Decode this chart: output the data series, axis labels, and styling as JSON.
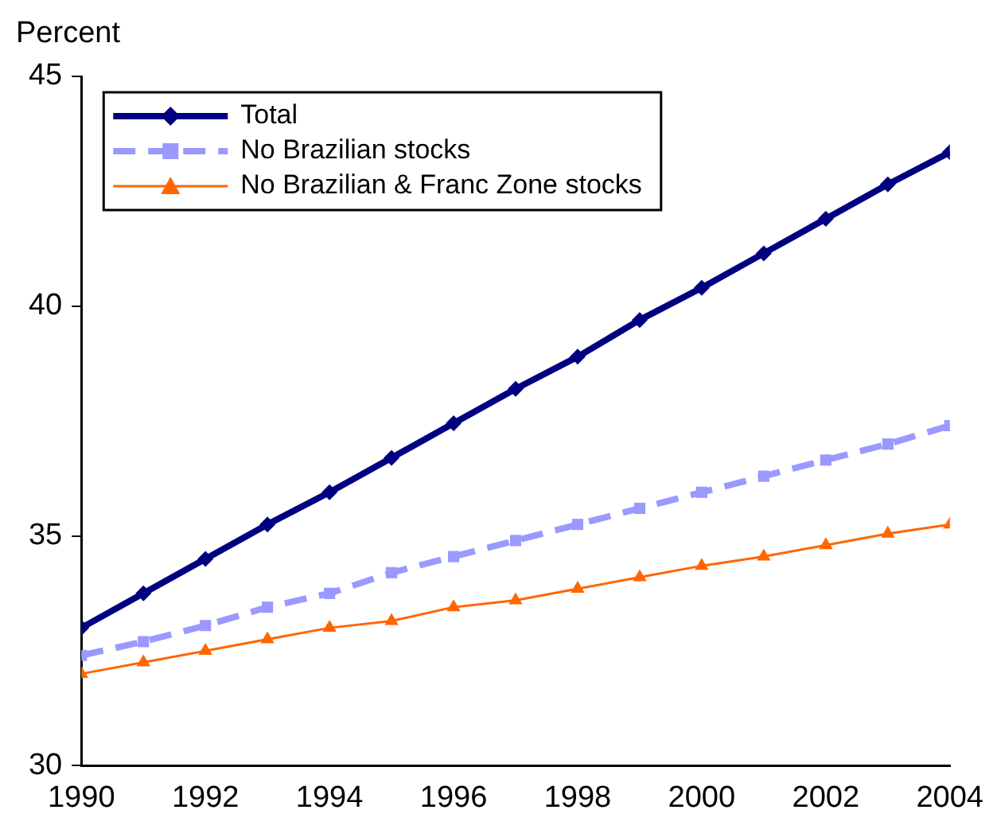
{
  "chart_data": {
    "type": "line",
    "ylabel": "Percent",
    "x": [
      1990,
      1991,
      1992,
      1993,
      1994,
      1995,
      1996,
      1997,
      1998,
      1999,
      2000,
      2001,
      2002,
      2003,
      2004
    ],
    "xlim": [
      1990,
      2004
    ],
    "xticks": [
      1990,
      1992,
      1994,
      1996,
      1998,
      2000,
      2002,
      2004
    ],
    "ylim": [
      30,
      45
    ],
    "yticks": [
      30,
      35,
      40,
      45
    ],
    "grid": false,
    "legend": "top left",
    "series": [
      {
        "name": "Total",
        "color": "#000080",
        "marker": "diamond",
        "line_style": "solid",
        "values": [
          33.0,
          33.75,
          34.5,
          35.25,
          35.95,
          36.7,
          37.45,
          38.2,
          38.9,
          39.7,
          40.4,
          41.15,
          41.9,
          42.65,
          43.35
        ]
      },
      {
        "name": "No Brazilian stocks",
        "color": "#9999ff",
        "marker": "square",
        "line_style": "dashed",
        "values": [
          32.4,
          32.7,
          33.05,
          33.45,
          33.75,
          34.2,
          34.55,
          34.9,
          35.25,
          35.6,
          35.95,
          36.3,
          36.65,
          37.0,
          37.4
        ]
      },
      {
        "name": "No Brazilian & Franc Zone stocks",
        "color": "#ff6600",
        "marker": "triangle",
        "line_style": "solid",
        "values": [
          32.0,
          32.25,
          32.5,
          32.75,
          33.0,
          33.15,
          33.45,
          33.6,
          33.85,
          34.1,
          34.35,
          34.55,
          34.8,
          35.05,
          35.25
        ]
      }
    ]
  }
}
